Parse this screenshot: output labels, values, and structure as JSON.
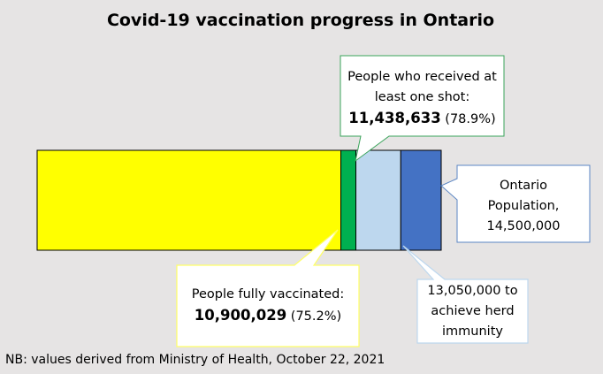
{
  "chart_data": {
    "type": "bar",
    "title": "Covid-19 vaccination progress in Ontario",
    "population": 14500000,
    "segments": [
      {
        "name": "People fully vaccinated",
        "value": 10900029,
        "pct": "(75.2%)",
        "color": "#ffff00"
      },
      {
        "name": "People who received at least one shot",
        "value": 11438633,
        "pct": "(78.9%)",
        "color": "#00b050"
      },
      {
        "name": "achieve herd immunity",
        "value": 13050000,
        "color": "#bdd7ee"
      },
      {
        "name": "Ontario Population",
        "value": 14500000,
        "color": "#4472c4"
      }
    ],
    "callouts": {
      "one_shot": {
        "line1": "People who received at",
        "line2": "least one shot:",
        "number": "11,438,633",
        "pct": "(78.9%)"
      },
      "fully": {
        "line1": "People fully vaccinated:",
        "number": "10,900,029",
        "pct": "(75.2%)"
      },
      "population": {
        "line1": "Ontario",
        "line2": "Population,",
        "line3": "14,500,000"
      },
      "herd": {
        "line1": "13,050,000 to",
        "line2": "achieve herd",
        "line3": "immunity"
      }
    },
    "footnote": "NB: values derived from Ministry of Health, October 22, 2021"
  }
}
